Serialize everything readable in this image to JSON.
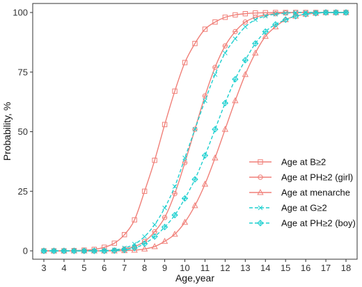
{
  "chart_data": {
    "type": "line",
    "title": "",
    "xlabel": "Age,year",
    "ylabel": "Probability, %",
    "xlim": [
      3,
      18
    ],
    "ylim": [
      0,
      100
    ],
    "x_ticks": [
      3,
      4,
      5,
      6,
      7,
      8,
      9,
      10,
      11,
      12,
      13,
      14,
      15,
      16,
      17,
      18
    ],
    "y_ticks": [
      0,
      25,
      50,
      75,
      100
    ],
    "grid": false,
    "legend_position": "bottom-right",
    "x": [
      3,
      3.5,
      4,
      4.5,
      5,
      5.5,
      6,
      6.5,
      7,
      7.5,
      8,
      8.5,
      9,
      9.5,
      10,
      10.5,
      11,
      11.5,
      12,
      12.5,
      13,
      13.5,
      14,
      14.5,
      15,
      15.5,
      16,
      16.5,
      17,
      17.5,
      18
    ],
    "series": [
      {
        "name": "Age at B≥2",
        "color": "#f07f78",
        "dashed": false,
        "marker": "square",
        "values": [
          0,
          0,
          0,
          0.1,
          0.3,
          0.6,
          1.5,
          3.2,
          6.8,
          13,
          25,
          38,
          53,
          67,
          79,
          87,
          93,
          96,
          98,
          99,
          99.5,
          99.8,
          99.9,
          100,
          100,
          100,
          100,
          100,
          100,
          100,
          100
        ]
      },
      {
        "name": "Age at PH≥2 (girl)",
        "color": "#f07f78",
        "dashed": false,
        "marker": "circle-h",
        "values": [
          0,
          0,
          0,
          0,
          0,
          0,
          0.1,
          0.3,
          0.8,
          1.8,
          4,
          8,
          14,
          24,
          37,
          51,
          65,
          77,
          86,
          92,
          96,
          98,
          99,
          99.5,
          99.8,
          100,
          100,
          100,
          100,
          100,
          100
        ]
      },
      {
        "name": "Age at menarche",
        "color": "#f07f78",
        "dashed": false,
        "marker": "triangle",
        "values": [
          0,
          0,
          0,
          0,
          0,
          0,
          0,
          0,
          0.1,
          0.3,
          0.8,
          1.8,
          4,
          7,
          12,
          19,
          28,
          39,
          51,
          63,
          74,
          83,
          90,
          94,
          97,
          98.5,
          99.3,
          99.7,
          100,
          100,
          100
        ]
      },
      {
        "name": "Age at G≥2",
        "color": "#1ccfcf",
        "dashed": true,
        "marker": "x",
        "values": [
          0,
          0,
          0,
          0,
          0,
          0,
          0.1,
          0.4,
          1.2,
          2.8,
          6,
          11,
          18,
          27,
          39,
          51,
          63,
          74,
          83,
          89,
          94,
          97,
          98.5,
          99.3,
          99.7,
          100,
          100,
          100,
          100,
          100,
          100
        ]
      },
      {
        "name": "Age at PH≥2 (boy)",
        "color": "#1ccfcf",
        "dashed": true,
        "marker": "diamond-plus",
        "values": [
          0,
          0,
          0,
          0,
          0,
          0,
          0,
          0.1,
          0.4,
          1.2,
          3,
          6,
          10,
          15,
          22,
          30,
          40,
          51,
          62,
          72,
          80,
          87,
          92,
          95,
          97,
          98.5,
          99.3,
          99.7,
          100,
          100,
          100
        ]
      }
    ]
  }
}
